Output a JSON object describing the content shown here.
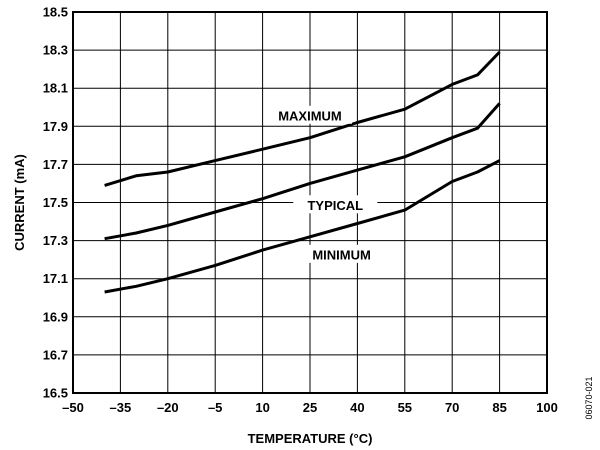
{
  "chart_data": {
    "type": "line",
    "xlabel": "TEMPERATURE (°C)",
    "ylabel": "CURRENT (mA)",
    "xlim": [
      -50,
      100
    ],
    "ylim": [
      16.5,
      18.5
    ],
    "x_ticks": [
      -50,
      -35,
      -20,
      -5,
      10,
      25,
      40,
      55,
      70,
      85,
      100
    ],
    "x_tick_labels": [
      "–50",
      "–35",
      "–20",
      "–5",
      "10",
      "25",
      "40",
      "55",
      "70",
      "85",
      "100"
    ],
    "y_ticks": [
      16.5,
      16.7,
      16.9,
      17.1,
      17.3,
      17.5,
      17.7,
      17.9,
      18.1,
      18.3,
      18.5
    ],
    "y_tick_labels": [
      "16.5",
      "16.7",
      "16.9",
      "17.1",
      "17.3",
      "17.5",
      "17.7",
      "17.9",
      "18.1",
      "18.3",
      "18.5"
    ],
    "grid": true,
    "series": [
      {
        "name": "MAXIMUM",
        "x": [
          -40,
          -30,
          -20,
          -5,
          10,
          25,
          40,
          55,
          70,
          78,
          85
        ],
        "y": [
          17.59,
          17.64,
          17.66,
          17.72,
          17.78,
          17.84,
          17.92,
          17.99,
          18.12,
          18.17,
          18.29
        ]
      },
      {
        "name": "TYPICAL",
        "x": [
          -40,
          -30,
          -20,
          -5,
          10,
          25,
          40,
          55,
          70,
          78,
          85
        ],
        "y": [
          17.31,
          17.34,
          17.38,
          17.45,
          17.52,
          17.6,
          17.67,
          17.74,
          17.84,
          17.89,
          18.02
        ]
      },
      {
        "name": "MINIMUM",
        "x": [
          -40,
          -30,
          -20,
          -5,
          10,
          25,
          40,
          55,
          70,
          78,
          85
        ],
        "y": [
          17.03,
          17.06,
          17.1,
          17.17,
          17.25,
          17.32,
          17.39,
          17.46,
          17.61,
          17.66,
          17.72
        ]
      }
    ],
    "annotations": [
      {
        "text": "MAXIMUM",
        "series": "MAXIMUM",
        "x": 25,
        "y": 17.95
      },
      {
        "text": "TYPICAL",
        "series": "TYPICAL",
        "x": 33,
        "y": 17.48
      },
      {
        "text": "MINIMUM",
        "series": "MINIMUM",
        "x": 35,
        "y": 17.22
      }
    ],
    "figure_id": "06070-021"
  }
}
